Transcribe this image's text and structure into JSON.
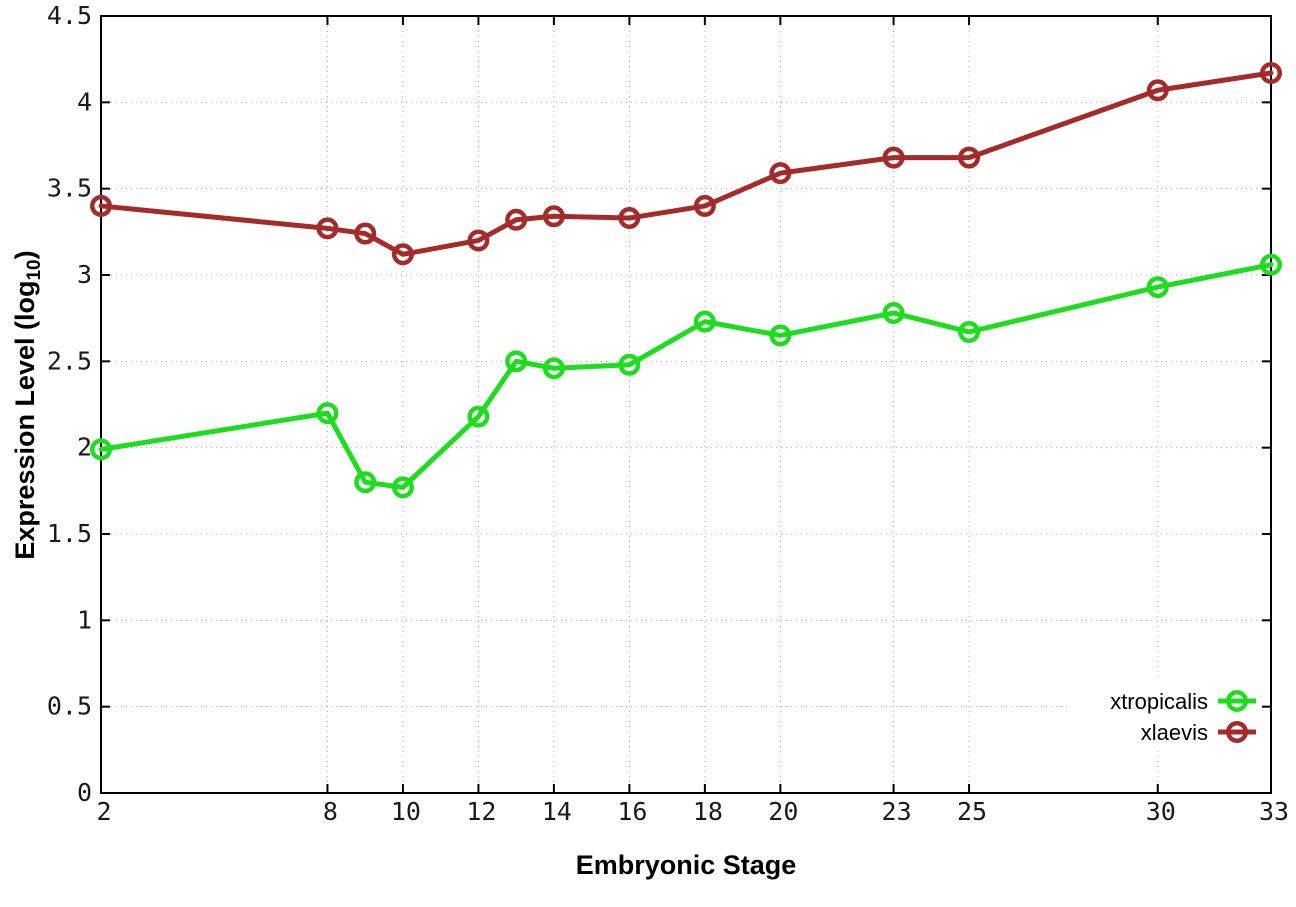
{
  "chart_data": {
    "type": "line",
    "title": "",
    "xlabel": "Embryonic Stage",
    "ylabel": {
      "main": "Expression Level (log",
      "sub": "10",
      "end": ")"
    },
    "x": [
      2,
      8,
      9,
      10,
      12,
      13,
      14,
      16,
      18,
      20,
      23,
      25,
      30,
      33
    ],
    "series": [
      {
        "name": "xtropicalis",
        "color": "#1edc1e",
        "marker": "open-circle",
        "values": [
          1.99,
          2.2,
          1.8,
          1.77,
          2.18,
          2.5,
          2.46,
          2.48,
          2.73,
          2.65,
          2.78,
          2.67,
          2.93,
          3.06
        ]
      },
      {
        "name": "xlaevis",
        "color": "#a52a2a",
        "marker": "open-circle",
        "values": [
          3.4,
          3.27,
          3.24,
          3.12,
          3.2,
          3.32,
          3.34,
          3.33,
          3.4,
          3.59,
          3.68,
          3.68,
          4.07,
          4.17
        ]
      }
    ],
    "xticks": [
      2,
      8,
      10,
      12,
      14,
      16,
      18,
      20,
      23,
      25,
      30,
      33
    ],
    "yticks": [
      0,
      0.5,
      1,
      1.5,
      2,
      2.5,
      3,
      3.5,
      4,
      4.5
    ],
    "xlim": [
      2,
      33
    ],
    "ylim": [
      0,
      4.5
    ],
    "grid": true,
    "legend_position": "bottom-right",
    "colors": {
      "background": "#ffffff",
      "axis": "#000000",
      "grid": "#aaaaaa",
      "tick_text": "#1a1a1a"
    }
  }
}
